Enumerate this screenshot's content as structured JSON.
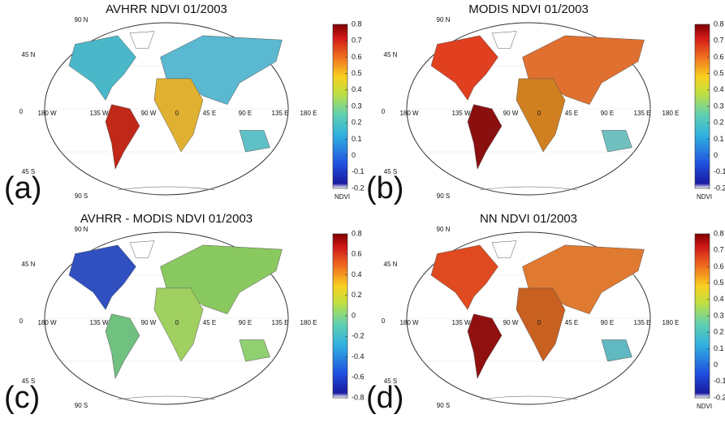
{
  "panels": [
    {
      "title": "AVHRR NDVI 01/2003",
      "label": "(a)",
      "colorbar": {
        "ticks": [
          0.8,
          0.7,
          0.6,
          0.5,
          0.4,
          0.3,
          0.2,
          0.1,
          0,
          -0.1,
          -0.2
        ],
        "label": "NDVI"
      }
    },
    {
      "title": "MODIS NDVI 01/2003",
      "label": "(b)",
      "colorbar": {
        "ticks": [
          0.8,
          0.7,
          0.6,
          0.5,
          0.4,
          0.3,
          0.2,
          0.1,
          0,
          -0.1,
          -0.2
        ],
        "label": "NDVI"
      }
    },
    {
      "title": "AVHRR - MODIS NDVI 01/2003",
      "label": "(c)",
      "colorbar": {
        "ticks": [
          0.8,
          0.6,
          0.4,
          0.2,
          0,
          -0.2,
          -0.4,
          -0.6,
          -0.8
        ]
      }
    },
    {
      "title": "NN NDVI 01/2003",
      "label": "(d)",
      "colorbar": {
        "ticks": [
          0.8,
          0.7,
          0.6,
          0.5,
          0.4,
          0.3,
          0.2,
          0.1,
          0,
          -0.1,
          -0.2
        ],
        "label": "NDVI"
      }
    }
  ],
  "map_labels": {
    "lat": [
      "90 N",
      "45 N",
      "0",
      "45 S",
      "90 S"
    ],
    "lon": [
      "180 W",
      "135 W",
      "90 W",
      "0",
      "45 E",
      "90 E",
      "135 E",
      "180 E"
    ]
  }
}
